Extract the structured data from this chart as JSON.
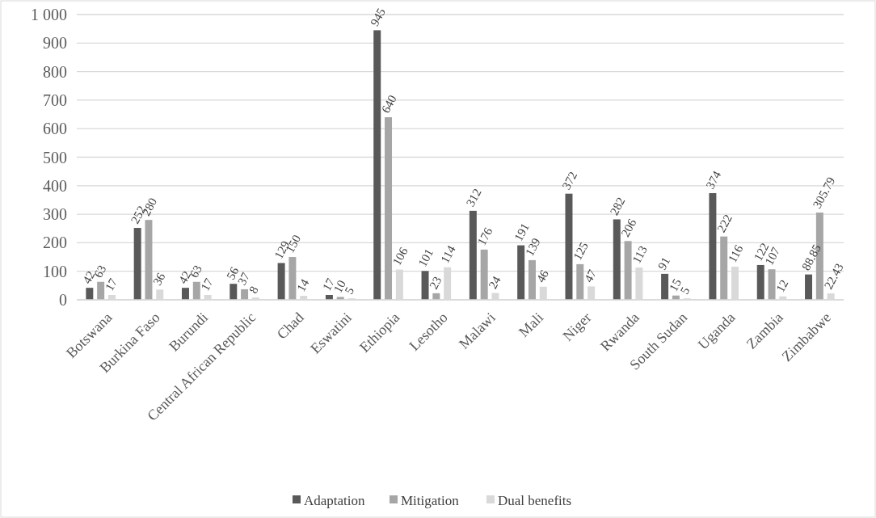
{
  "chart_data": {
    "type": "bar",
    "categories": [
      "Botswana",
      "Burkina Faso",
      "Burundi",
      "Central African Republic",
      "Chad",
      "Eswatini",
      "Ethiopia",
      "Lesotho",
      "Malawi",
      "Mali",
      "Niger",
      "Rwanda",
      "South Sudan",
      "Uganda",
      "Zambia",
      "Zimbabwe"
    ],
    "series": [
      {
        "name": "Adaptation",
        "color": "#595959",
        "values": [
          42,
          252,
          42,
          56,
          129,
          17,
          945,
          101,
          312,
          191,
          372,
          282,
          91,
          374,
          122,
          88.85
        ]
      },
      {
        "name": "Mitigation",
        "color": "#a6a6a6",
        "values": [
          63,
          280,
          63,
          37,
          150,
          10,
          640,
          23,
          176,
          139,
          125,
          206,
          15,
          222,
          107,
          305.79
        ]
      },
      {
        "name": "Dual benefits",
        "color": "#d9d9d9",
        "values": [
          17,
          36,
          17,
          8,
          14,
          5,
          106,
          114,
          24,
          46,
          47,
          113,
          5,
          116,
          12,
          22.43
        ]
      }
    ],
    "ylim": [
      0,
      1000
    ],
    "yticks": [
      0,
      100,
      200,
      300,
      400,
      500,
      600,
      700,
      800,
      900,
      {
        "value": 1000,
        "label": "1 000"
      }
    ],
    "grid": "y",
    "legend": "bottom",
    "data_labels": true
  }
}
